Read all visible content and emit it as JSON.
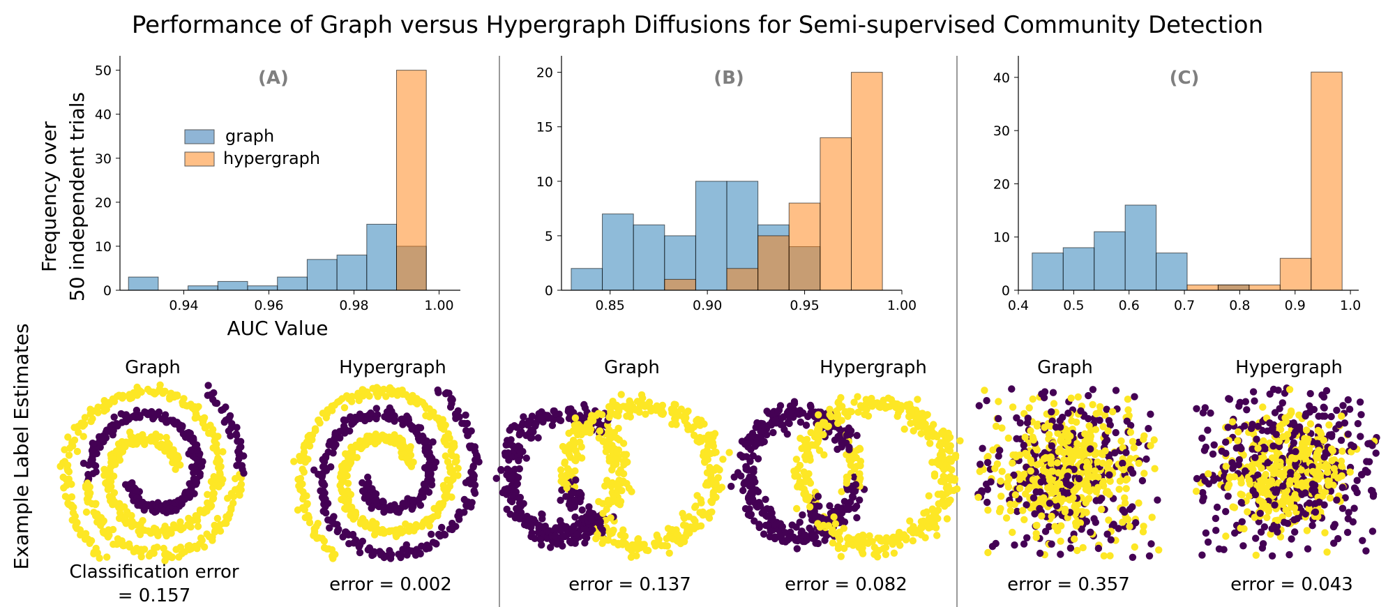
{
  "title": "Performance of Graph versus Hypergraph Diffusions for Semi-supervised Community Detection",
  "colors": {
    "graph": "#1f77b4",
    "hypergraph": "#ff7f0e",
    "overlap": "#b4825a",
    "class_dark": "#440154",
    "class_yellow": "#fde725",
    "divider": "#999999",
    "panel_letter": "#7f7f7f"
  },
  "ylabel_line1": "Frequency over",
  "ylabel_line2": "50 independent trials",
  "xlabel": "AUC Value",
  "side_label": "Example Label Estimates",
  "legend": {
    "graph": "graph",
    "hypergraph": "hypergraph",
    "placement": "upper-left inside panel A"
  },
  "chart_data": [
    {
      "type": "bar",
      "panel": "(A)",
      "xlim": [
        0.925,
        1.005
      ],
      "ylim": [
        0,
        52
      ],
      "xticks": [
        "0.94",
        "0.96",
        "0.98",
        "1.00"
      ],
      "yticks": [
        "0",
        "10",
        "20",
        "30",
        "40",
        "50"
      ],
      "series": [
        {
          "name": "graph",
          "bins": [
            [
              0.927,
              0.934,
              3
            ],
            [
              0.934,
              0.941,
              0
            ],
            [
              0.941,
              0.948,
              1
            ],
            [
              0.948,
              0.955,
              2
            ],
            [
              0.955,
              0.962,
              1
            ],
            [
              0.962,
              0.969,
              3
            ],
            [
              0.969,
              0.976,
              7
            ],
            [
              0.976,
              0.983,
              8
            ],
            [
              0.983,
              0.99,
              15
            ],
            [
              0.99,
              0.997,
              10
            ]
          ]
        },
        {
          "name": "hypergraph",
          "bins": [
            [
              0.99,
              0.997,
              50
            ]
          ]
        }
      ]
    },
    {
      "type": "bar",
      "panel": "(B)",
      "xlim": [
        0.825,
        1.0
      ],
      "ylim": [
        0,
        21
      ],
      "xticks": [
        "0.85",
        "0.90",
        "0.95",
        "1.00"
      ],
      "yticks": [
        "0",
        "5",
        "10",
        "15",
        "20"
      ],
      "series": [
        {
          "name": "graph",
          "bins": [
            [
              0.83,
              0.846,
              2
            ],
            [
              0.846,
              0.862,
              7
            ],
            [
              0.862,
              0.878,
              6
            ],
            [
              0.878,
              0.894,
              5
            ],
            [
              0.894,
              0.91,
              10
            ],
            [
              0.91,
              0.926,
              10
            ],
            [
              0.926,
              0.942,
              6
            ],
            [
              0.942,
              0.958,
              4
            ]
          ]
        },
        {
          "name": "hypergraph",
          "bins": [
            [
              0.878,
              0.894,
              1
            ],
            [
              0.91,
              0.926,
              2
            ],
            [
              0.926,
              0.942,
              5
            ],
            [
              0.942,
              0.958,
              8
            ],
            [
              0.958,
              0.974,
              14
            ],
            [
              0.974,
              0.99,
              20
            ]
          ]
        }
      ]
    },
    {
      "type": "bar",
      "panel": "(C)",
      "xlim": [
        0.4,
        1.015
      ],
      "ylim": [
        0,
        43
      ],
      "xticks": [
        "0.4",
        "0.5",
        "0.6",
        "0.7",
        "0.8",
        "0.9",
        "1.0"
      ],
      "yticks": [
        "0",
        "10",
        "20",
        "30",
        "40"
      ],
      "series": [
        {
          "name": "graph",
          "bins": [
            [
              0.425,
              0.481,
              7
            ],
            [
              0.481,
              0.537,
              8
            ],
            [
              0.537,
              0.593,
              11
            ],
            [
              0.593,
              0.649,
              16
            ],
            [
              0.649,
              0.705,
              7
            ],
            [
              0.761,
              0.817,
              1
            ]
          ]
        },
        {
          "name": "hypergraph",
          "bins": [
            [
              0.705,
              0.761,
              1
            ],
            [
              0.761,
              0.817,
              1
            ],
            [
              0.817,
              0.873,
              1
            ],
            [
              0.873,
              0.929,
              6
            ],
            [
              0.929,
              0.985,
              41
            ]
          ]
        }
      ]
    }
  ],
  "panels": [
    {
      "letter": "(A)",
      "graph_title": "Graph",
      "hyper_title": "Hypergraph",
      "graph_error_line1": "Classification error",
      "graph_error_line2": "= 0.157",
      "hyper_error": "error = 0.002"
    },
    {
      "letter": "(B)",
      "graph_title": "Graph",
      "hyper_title": "Hypergraph",
      "graph_error": "error = 0.137",
      "hyper_error": "error = 0.082"
    },
    {
      "letter": "(C)",
      "graph_title": "Graph",
      "hyper_title": "Hypergraph",
      "graph_error": "error = 0.357",
      "hyper_error": "error = 0.043"
    }
  ]
}
